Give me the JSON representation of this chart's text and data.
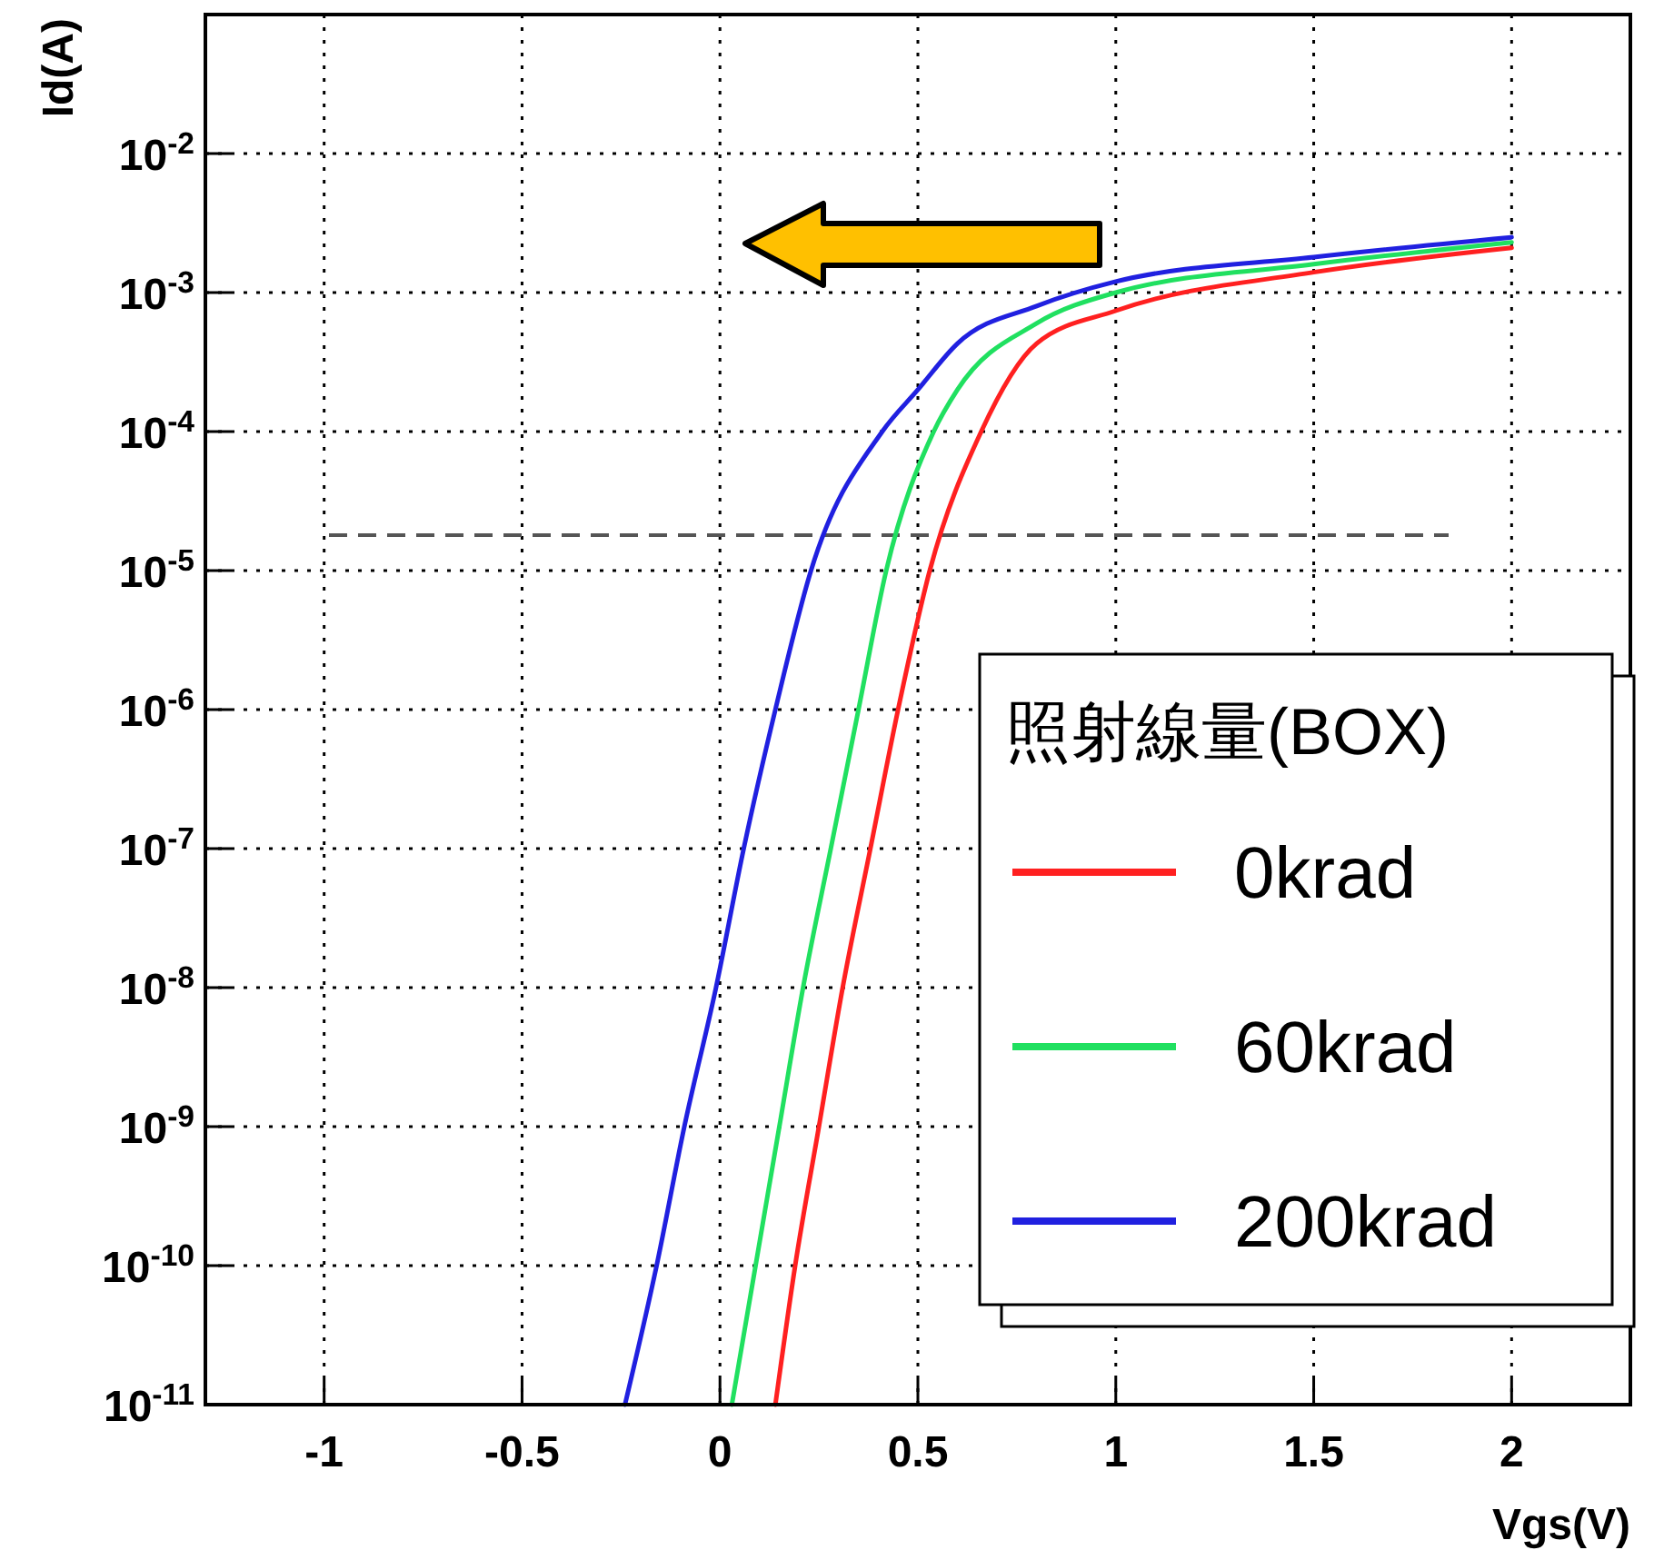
{
  "chart_data": {
    "type": "line",
    "xlabel": "Vgs(V)",
    "ylabel": "Id(A)",
    "legend_title": "照射線量(BOX)",
    "log": "y",
    "grid": true,
    "legend": "bottom right",
    "line_style": "solid",
    "marker": "none",
    "xlim": [
      -1.3,
      2.3
    ],
    "xticks": [
      -1,
      -0.5,
      0,
      0.5,
      1,
      1.5,
      2
    ],
    "ylim": [
      1e-11,
      0.1
    ],
    "yticks": [
      {
        "value": 1e-11,
        "label": "10$^{-11}$"
      },
      {
        "value": 1e-10,
        "label": "10$^{-10}$"
      },
      {
        "value": 1e-09,
        "label": "10$^{-9}$"
      },
      {
        "value": 1e-08,
        "label": "10$^{-8}$"
      },
      {
        "value": 1e-07,
        "label": "10$^{-7}$"
      },
      {
        "value": 1e-06,
        "label": "10$^{-6}$"
      },
      {
        "value": 1e-05,
        "label": "10$^{-5}$"
      },
      {
        "value": 0.0001,
        "label": "10$^{-4}$"
      },
      {
        "value": 0.001,
        "label": "10$^{-3}$"
      },
      {
        "value": 0.01,
        "label": "10$^{-2}$"
      }
    ],
    "ref_lines": [
      {
        "axis": "y",
        "value": 1.8e-05,
        "color": "#555555",
        "line_style": "dashed"
      }
    ],
    "series": [
      {
        "name": "0krad",
        "color": "#ff2020",
        "x": [
          0.14,
          0.19,
          0.25,
          0.31,
          0.38,
          0.45,
          0.53,
          0.66,
          0.8,
          1,
          1.5,
          2
        ],
        "values": [
          1e-11,
          1e-10,
          1e-09,
          1e-08,
          1e-07,
          1e-06,
          1e-05,
          0.0001,
          0.00043,
          0.00074,
          0.0014,
          0.0021
        ]
      },
      {
        "name": "60krad",
        "color": "#20e060",
        "x": [
          0.03,
          0.09,
          0.15,
          0.21,
          0.28,
          0.35,
          0.42,
          0.54,
          0.6,
          0.8,
          1,
          1.5,
          2
        ],
        "values": [
          1e-11,
          1e-10,
          1e-09,
          1e-08,
          1e-07,
          1e-06,
          1e-05,
          0.0001,
          0.0002,
          0.0006,
          0.001,
          0.0016,
          0.0023
        ]
      },
      {
        "name": "200krad",
        "color": "#2020e0",
        "x": [
          -0.24,
          -0.16,
          -0.09,
          -0.01,
          0.06,
          0.14,
          0.23,
          0.41,
          0.5,
          0.6,
          0.8,
          1,
          1.5,
          2
        ],
        "values": [
          1e-11,
          1e-10,
          1e-09,
          1e-08,
          1e-07,
          1e-06,
          1e-05,
          0.0001,
          0.0002,
          0.00043,
          0.0008,
          0.0012,
          0.0018,
          0.0025
        ]
      }
    ]
  }
}
